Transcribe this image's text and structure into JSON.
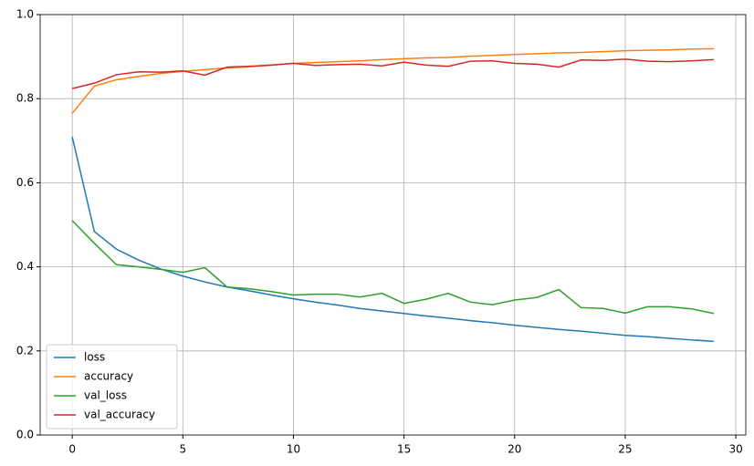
{
  "chart_data": {
    "type": "line",
    "x": [
      0,
      1,
      2,
      3,
      4,
      5,
      6,
      7,
      8,
      9,
      10,
      11,
      12,
      13,
      14,
      15,
      16,
      17,
      18,
      19,
      20,
      21,
      22,
      23,
      24,
      25,
      26,
      27,
      28,
      29
    ],
    "series": [
      {
        "name": "loss",
        "color": "#1f77b4",
        "values": [
          0.709,
          0.484,
          0.442,
          0.416,
          0.395,
          0.378,
          0.364,
          0.352,
          0.343,
          0.333,
          0.324,
          0.316,
          0.309,
          0.301,
          0.295,
          0.289,
          0.283,
          0.278,
          0.272,
          0.267,
          0.261,
          0.256,
          0.251,
          0.247,
          0.242,
          0.237,
          0.234,
          0.23,
          0.226,
          0.223
        ]
      },
      {
        "name": "accuracy",
        "color": "#ff7f0e",
        "values": [
          0.765,
          0.83,
          0.845,
          0.853,
          0.86,
          0.865,
          0.869,
          0.873,
          0.876,
          0.88,
          0.884,
          0.886,
          0.888,
          0.89,
          0.893,
          0.895,
          0.897,
          0.898,
          0.901,
          0.903,
          0.905,
          0.907,
          0.909,
          0.91,
          0.912,
          0.914,
          0.915,
          0.916,
          0.918,
          0.919
        ]
      },
      {
        "name": "val_loss",
        "color": "#2ca02c",
        "values": [
          0.51,
          0.456,
          0.405,
          0.4,
          0.394,
          0.387,
          0.398,
          0.352,
          0.348,
          0.341,
          0.333,
          0.335,
          0.335,
          0.328,
          0.337,
          0.313,
          0.323,
          0.337,
          0.316,
          0.31,
          0.321,
          0.327,
          0.346,
          0.303,
          0.301,
          0.29,
          0.305,
          0.305,
          0.3,
          0.289
        ]
      },
      {
        "name": "val_accuracy",
        "color": "#d62728",
        "values": [
          0.824,
          0.837,
          0.857,
          0.864,
          0.863,
          0.866,
          0.856,
          0.875,
          0.877,
          0.88,
          0.884,
          0.879,
          0.881,
          0.882,
          0.878,
          0.887,
          0.88,
          0.877,
          0.889,
          0.89,
          0.884,
          0.882,
          0.875,
          0.892,
          0.891,
          0.894,
          0.889,
          0.888,
          0.89,
          0.893
        ]
      }
    ],
    "xlim": [
      -1.45,
      30.45
    ],
    "xticks": [
      0,
      5,
      10,
      15,
      20,
      25,
      30
    ],
    "ylim": [
      0,
      1
    ],
    "yticks": [
      {
        "value": 0,
        "label": "0.0"
      },
      0.2,
      0.4,
      0.6,
      0.8,
      {
        "value": 1,
        "label": "1.0"
      }
    ],
    "grid": true,
    "legend": "lower left"
  }
}
